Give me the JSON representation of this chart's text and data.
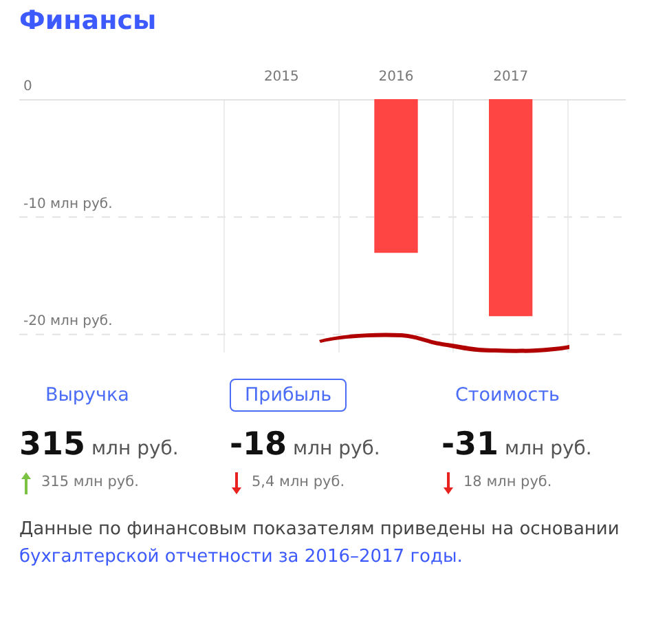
{
  "chart_data": {
    "type": "bar",
    "title": "Финансы",
    "categories": [
      "2015",
      "2016",
      "2017"
    ],
    "values": [
      null,
      -13.1,
      -18.5
    ],
    "color": "#ff4444",
    "ylim": [
      -21.6,
      0
    ],
    "yticks": [
      {
        "value": 0,
        "label": "0"
      },
      {
        "value": -10,
        "label": "-10 млн руб."
      },
      {
        "value": -20,
        "label": "-20 млн руб."
      }
    ],
    "grid": true,
    "legend": false,
    "annotations": [
      "Выручка",
      "Прибыль",
      "Стоимость",
      "315 млн руб.",
      "315 млн руб.",
      "-18 млн руб.",
      "5,4 млн руб.",
      "-31 млн руб.",
      "18 млн руб.",
      "Данные по финансовым показателям приведены на основании",
      "бухгалтерской отчетности за 2016–2017 годы."
    ]
  }
}
